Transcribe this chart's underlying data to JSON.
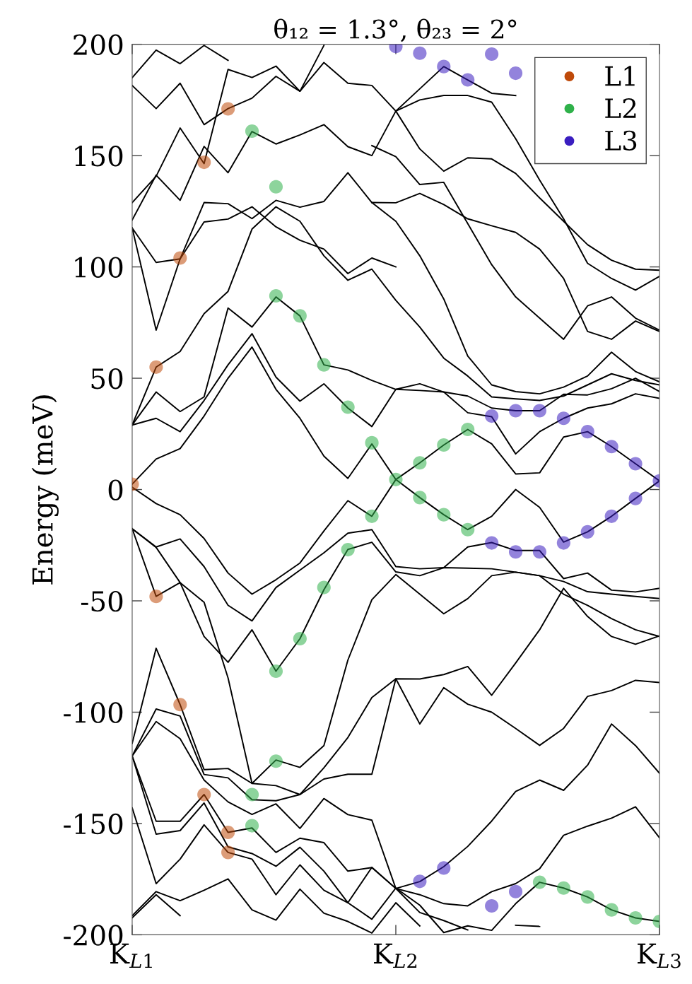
{
  "chart_data": {
    "type": "line",
    "title": "θ₁₂ = 1.3°, θ₂₃ = 2°",
    "ylabel": "Energy (meV)",
    "categories": [
      "K$_{L1}$",
      null,
      null,
      null,
      null,
      null,
      null,
      null,
      null,
      null,
      null,
      "K$_{L2}$",
      null,
      null,
      null,
      null,
      null,
      null,
      null,
      null,
      null,
      null,
      "K$_{L3}$"
    ],
    "ylim": [
      -200,
      200
    ],
    "yticks": [
      -200,
      -150,
      -100,
      -50,
      0,
      50,
      100,
      150,
      200
    ],
    "grid": false,
    "legend": "top right",
    "line_style": "solid",
    "series": [
      {
        "color": "#000000",
        "values": [
          2.4,
          13.7,
          18.4,
          33,
          50,
          64,
          45,
          32,
          15,
          5,
          20.5,
          4.5,
          12,
          20,
          27,
          20.5,
          7,
          7.5,
          23.6,
          26,
          19.3,
          11.6,
          3.9
        ]
      },
      {
        "color": "#000000",
        "values": [
          1,
          -6.3,
          -11.3,
          -22,
          -37.5,
          -47,
          -40.5,
          -33,
          -18.6,
          -5,
          -12,
          4.5,
          -3.6,
          -11.3,
          -18,
          -12,
          0,
          -8,
          -23.6,
          -19,
          -12,
          -4,
          3.9
        ]
      },
      {
        "color": "#000000",
        "values": [
          29,
          32,
          26,
          40,
          56,
          70,
          50.5,
          39.7,
          47.5,
          36.6,
          28.3,
          45,
          47.5,
          43.8,
          34.5,
          32.7,
          16,
          26,
          32,
          36.6,
          38.5,
          43,
          41
        ]
      },
      {
        "color": "#000000",
        "values": [
          29,
          43.8,
          35,
          41.6,
          81.5,
          73,
          86.5,
          78,
          56,
          53.7,
          49,
          45,
          44.5,
          43.8,
          42,
          36.6,
          35.4,
          35.4,
          42.8,
          42.5,
          45.3,
          50,
          44
        ]
      },
      {
        "color": "#000000",
        "values": [
          29,
          55,
          62,
          79,
          89,
          117,
          127,
          120.5,
          105,
          94,
          99,
          85,
          73,
          59,
          51,
          41.6,
          40.7,
          40,
          42,
          47,
          52,
          49,
          47
        ]
      },
      {
        "color": "#000000",
        "values": [
          117.5,
          71.6,
          103.6,
          128.9,
          128.4,
          121.7,
          129.9,
          126.8,
          129.4,
          142.3,
          128.9,
          120.5,
          105,
          85.6,
          60,
          47,
          44,
          43,
          46,
          51,
          61.7,
          53,
          48.4
        ]
      },
      {
        "color": "#000000",
        "values": [
          117.5,
          102,
          103.6,
          120.2,
          121.5,
          127,
          118,
          112,
          108,
          97,
          104,
          100,
          null,
          null,
          null,
          null,
          null,
          null,
          null,
          null,
          null,
          null,
          null
        ]
      },
      {
        "color": "#000000",
        "values": [
          181.5,
          171.1,
          182.5,
          163.9,
          171.1,
          175.8,
          185.6,
          178.9,
          191.8,
          182.5,
          181.5,
          170,
          175,
          177,
          177,
          174,
          157.6,
          139,
          121.6,
          101.6,
          94.8,
          89.6,
          95.8
        ]
      },
      {
        "color": "#000000",
        "values": [
          185,
          197.4,
          191.3,
          199.5,
          192.8,
          null,
          null,
          null,
          null,
          null,
          null,
          170,
          180,
          190,
          184,
          178,
          177,
          null,
          null,
          null,
          null,
          null,
          null
        ]
      },
      {
        "color": "#000000",
        "values": [
          121.1,
          141.2,
          129.9,
          154.1,
          142.3,
          160.8,
          155.2,
          159.3,
          163.9,
          154,
          150,
          170,
          153,
          143,
          149,
          148.5,
          142,
          131,
          120.5,
          110,
          103,
          99,
          98.5
        ]
      },
      {
        "color": "#000000",
        "values": [
          128.9,
          140.7,
          162.4,
          146.4,
          188.7,
          185.1,
          190.2,
          178.9,
          199.5,
          null,
          null,
          null,
          null,
          null,
          null,
          null,
          null,
          null,
          null,
          null,
          null,
          null,
          null
        ]
      },
      {
        "color": "#000000",
        "values": [
          null,
          null,
          null,
          null,
          null,
          null,
          null,
          null,
          null,
          null,
          128.9,
          128.8,
          133,
          128,
          121.6,
          118.5,
          115.5,
          108,
          94.8,
          71,
          67.5,
          75.7,
          71
        ]
      },
      {
        "color": "#000000",
        "values": [
          null,
          null,
          null,
          null,
          null,
          null,
          null,
          null,
          null,
          null,
          154.5,
          149.5,
          137,
          138,
          119.5,
          101,
          86.5,
          77,
          67.5,
          82.5,
          86.5,
          77,
          71.6
        ]
      },
      {
        "color": "#000000",
        "values": [
          -17.6,
          -25.8,
          -22.2,
          -34.6,
          -52,
          -59,
          -44,
          -36.2,
          -28.4,
          -19.6,
          -18,
          -34.6,
          -35.6,
          -35.1,
          -35.3,
          -35.6,
          -37.1,
          -38.7,
          -41.3,
          -45.9,
          -47,
          -48,
          -49
        ]
      },
      {
        "color": "#000000",
        "values": [
          -17.6,
          -48,
          -41.8,
          -66,
          -77.6,
          -63,
          -81.6,
          -67,
          -45,
          -26.9,
          -23.7,
          -37,
          -38.7,
          -35.1,
          -25.8,
          -23.8,
          -27.4,
          -27.4,
          -40,
          -37.5,
          -45.2,
          -46,
          -44.4
        ]
      },
      {
        "color": "#000000",
        "values": [
          -17.6,
          -26,
          -41.8,
          -50.6,
          -84.6,
          -132,
          -121.5,
          -124.8,
          -115,
          -76.6,
          -49.5,
          -38.2,
          -47,
          -55.8,
          -49,
          -38.7,
          -37.1,
          -38.7,
          -47,
          -52,
          -58,
          -63,
          -66
        ]
      },
      {
        "color": "#000000",
        "values": [
          -114,
          -71.3,
          -96.6,
          -125.8,
          -125.3,
          -132,
          -133,
          -137,
          -130,
          -127.9,
          -127.9,
          -85,
          -85.1,
          -83.1,
          -79.5,
          -92.4,
          -77.9,
          -63,
          -44.4,
          -57,
          -66,
          -69.5,
          -65.7
        ]
      },
      {
        "color": "#000000",
        "values": [
          -119.7,
          -98.6,
          -101.7,
          -128,
          -129.5,
          -139.3,
          -139.8,
          -137,
          -125,
          -111.4,
          -93.4,
          -85,
          -105.3,
          -89,
          -96.4,
          -100,
          -107.3,
          -114.9,
          -107.3,
          -92.9,
          -90.3,
          -85.7,
          -86.7
        ]
      },
      {
        "color": "#000000",
        "values": [
          -119.7,
          -104.2,
          -111.9,
          -130.5,
          -140.3,
          -145.9,
          -141.2,
          -152.2,
          -138.8,
          -146,
          -148.5,
          -179.2,
          -176.1,
          -169.4,
          -160.3,
          -148.9,
          -135.6,
          -130.5,
          -135.1,
          -123.8,
          -105.3,
          -115,
          -127.4
        ]
      },
      {
        "color": "#000000",
        "values": [
          -119.7,
          -149,
          -149,
          -137,
          -154,
          -152,
          -163,
          -156.6,
          -158.6,
          -171.4,
          -169.8,
          -179.2,
          -182,
          -186,
          -187,
          -180.6,
          -177,
          -170.3,
          -155.3,
          -151.2,
          -147.6,
          -142.5,
          -156.4
        ]
      },
      {
        "color": "#000000",
        "values": [
          -119.7,
          -154.8,
          -153.2,
          -140.8,
          -160.5,
          -163.5,
          -169.2,
          -160.7,
          -171.4,
          -185.6,
          -169.7,
          -179.2,
          -190,
          -193.6,
          -197.8,
          null,
          null,
          null,
          null,
          null,
          null,
          null,
          null
        ]
      },
      {
        "color": "#000000",
        "values": [
          -143,
          -177,
          -166,
          -150.6,
          -163,
          -166,
          -182,
          -168.6,
          -180,
          -185.6,
          -193,
          -179,
          -186.7,
          -199,
          -196,
          -198,
          -186,
          -176.4,
          -179,
          -183,
          -188.8,
          -192.4,
          -194
        ]
      },
      {
        "color": "#000000",
        "values": [
          -191.4,
          -180.6,
          -184.7,
          -180,
          -174.9,
          -188.8,
          -193.4,
          -179.5,
          -190.3,
          -194,
          -199.2,
          -185.6,
          -196,
          null,
          null,
          null,
          null,
          null,
          null,
          null,
          null,
          null,
          null
        ]
      },
      {
        "color": "#000000",
        "values": [
          -192.4,
          -182,
          -191.4,
          null,
          null,
          null,
          null,
          null,
          null,
          null,
          null,
          null,
          null,
          null,
          null,
          null,
          null,
          null,
          null,
          null,
          null,
          null,
          null
        ]
      },
      {
        "color": "#000000",
        "values": [
          null,
          null,
          null,
          null,
          null,
          null,
          null,
          null,
          null,
          null,
          null,
          null,
          null,
          null,
          null,
          null,
          -195.7,
          -196.2,
          null,
          null,
          null,
          null,
          null
        ]
      },
      {
        "type": "scatter",
        "name": "L1",
        "color": "#bf4a0a",
        "marker": "circle",
        "values": [
          2.4,
          55,
          104,
          147,
          171,
          null,
          null,
          null,
          null,
          null,
          null,
          null,
          null,
          null,
          null,
          null,
          null,
          null,
          null,
          null,
          null,
          null,
          null
        ]
      },
      {
        "type": "scatter",
        "color": "#bf4a0a",
        "marker": "circle",
        "values": [
          null,
          -48,
          -96.6,
          -137,
          -154,
          null,
          null,
          null,
          null,
          null,
          null,
          null,
          null,
          null,
          null,
          null,
          null,
          null,
          null,
          null,
          null,
          null,
          null
        ]
      },
      {
        "type": "scatter",
        "color": "#bf4a0a",
        "marker": "circle",
        "values": [
          null,
          null,
          null,
          null,
          -163,
          null,
          null,
          null,
          null,
          null,
          null,
          null,
          null,
          null,
          null,
          null,
          null,
          null,
          null,
          null,
          null,
          null,
          null
        ]
      },
      {
        "type": "scatter",
        "name": "L2",
        "color": "#2fb14a",
        "marker": "circle",
        "values": [
          null,
          null,
          null,
          null,
          null,
          161,
          136,
          78,
          56,
          37,
          21,
          4.5,
          12,
          20,
          27,
          null,
          null,
          -176.4,
          -179,
          -183,
          -188.8,
          -192.4,
          -194
        ]
      },
      {
        "type": "scatter",
        "color": "#2fb14a",
        "marker": "circle",
        "values": [
          null,
          null,
          null,
          null,
          null,
          -151,
          87,
          -67,
          -44,
          -27,
          -12,
          null,
          -3.6,
          -11.3,
          -18,
          null,
          null,
          null,
          null,
          null,
          null,
          null,
          null
        ]
      },
      {
        "type": "scatter",
        "color": "#2fb14a",
        "marker": "circle",
        "values": [
          null,
          null,
          null,
          null,
          null,
          -137,
          -81.6,
          null,
          null,
          null,
          null,
          null,
          null,
          null,
          null,
          null,
          null,
          null,
          null,
          null,
          null,
          null,
          null
        ]
      },
      {
        "type": "scatter",
        "color": "#2fb14a",
        "marker": "circle",
        "values": [
          null,
          null,
          null,
          null,
          null,
          null,
          -122,
          null,
          null,
          null,
          null,
          null,
          null,
          null,
          null,
          null,
          null,
          null,
          null,
          null,
          null,
          null,
          null
        ]
      },
      {
        "type": "scatter",
        "name": "L3",
        "color": "#3a1ec0",
        "marker": "circle",
        "values": [
          null,
          null,
          null,
          null,
          null,
          null,
          null,
          null,
          null,
          null,
          null,
          199,
          196,
          190,
          184,
          33,
          35.4,
          35.4,
          32,
          26,
          19.3,
          11.6,
          3.9
        ]
      },
      {
        "type": "scatter",
        "color": "#3a1ec0",
        "marker": "circle",
        "values": [
          null,
          null,
          null,
          null,
          null,
          null,
          null,
          null,
          null,
          null,
          null,
          null,
          -176,
          -170,
          null,
          -24,
          -28,
          -28,
          -24,
          -19,
          -12,
          -4,
          null
        ]
      },
      {
        "type": "scatter",
        "color": "#3a1ec0",
        "marker": "circle",
        "values": [
          null,
          null,
          null,
          null,
          null,
          null,
          null,
          null,
          null,
          null,
          null,
          null,
          null,
          null,
          null,
          -187,
          -180.6,
          null,
          null,
          null,
          null,
          null,
          null
        ]
      },
      {
        "type": "scatter",
        "color": "#3a1ec0",
        "marker": "circle",
        "values": [
          null,
          null,
          null,
          null,
          null,
          null,
          null,
          null,
          null,
          null,
          null,
          null,
          null,
          null,
          null,
          195.6,
          187,
          null,
          null,
          null,
          null,
          null,
          null
        ]
      }
    ]
  }
}
